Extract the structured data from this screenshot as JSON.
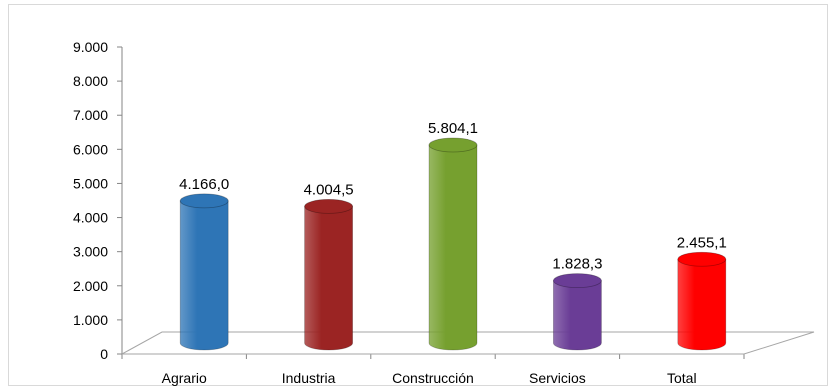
{
  "chart_data": {
    "type": "bar",
    "title": "",
    "xlabel": "",
    "ylabel": "",
    "ylim": [
      0,
      9000
    ],
    "yticks": [
      "0",
      "1.000",
      "2.000",
      "3.000",
      "4.000",
      "5.000",
      "6.000",
      "7.000",
      "8.000",
      "9.000"
    ],
    "categories": [
      "Agrario",
      "Industria",
      "Construcción",
      "Servicios",
      "Total"
    ],
    "values": [
      4166.0,
      4004.5,
      5804.1,
      1828.3,
      2455.1
    ],
    "value_labels": [
      "4.166,0",
      "4.004,5",
      "5.804,1",
      "1.828,3",
      "2.455,1"
    ],
    "colors": [
      "#2e75b6",
      "#9b2423",
      "#76a02f",
      "#6a3d96",
      "#ff0000"
    ],
    "style": "3d-cylinder",
    "grid": false,
    "legend": "none"
  }
}
